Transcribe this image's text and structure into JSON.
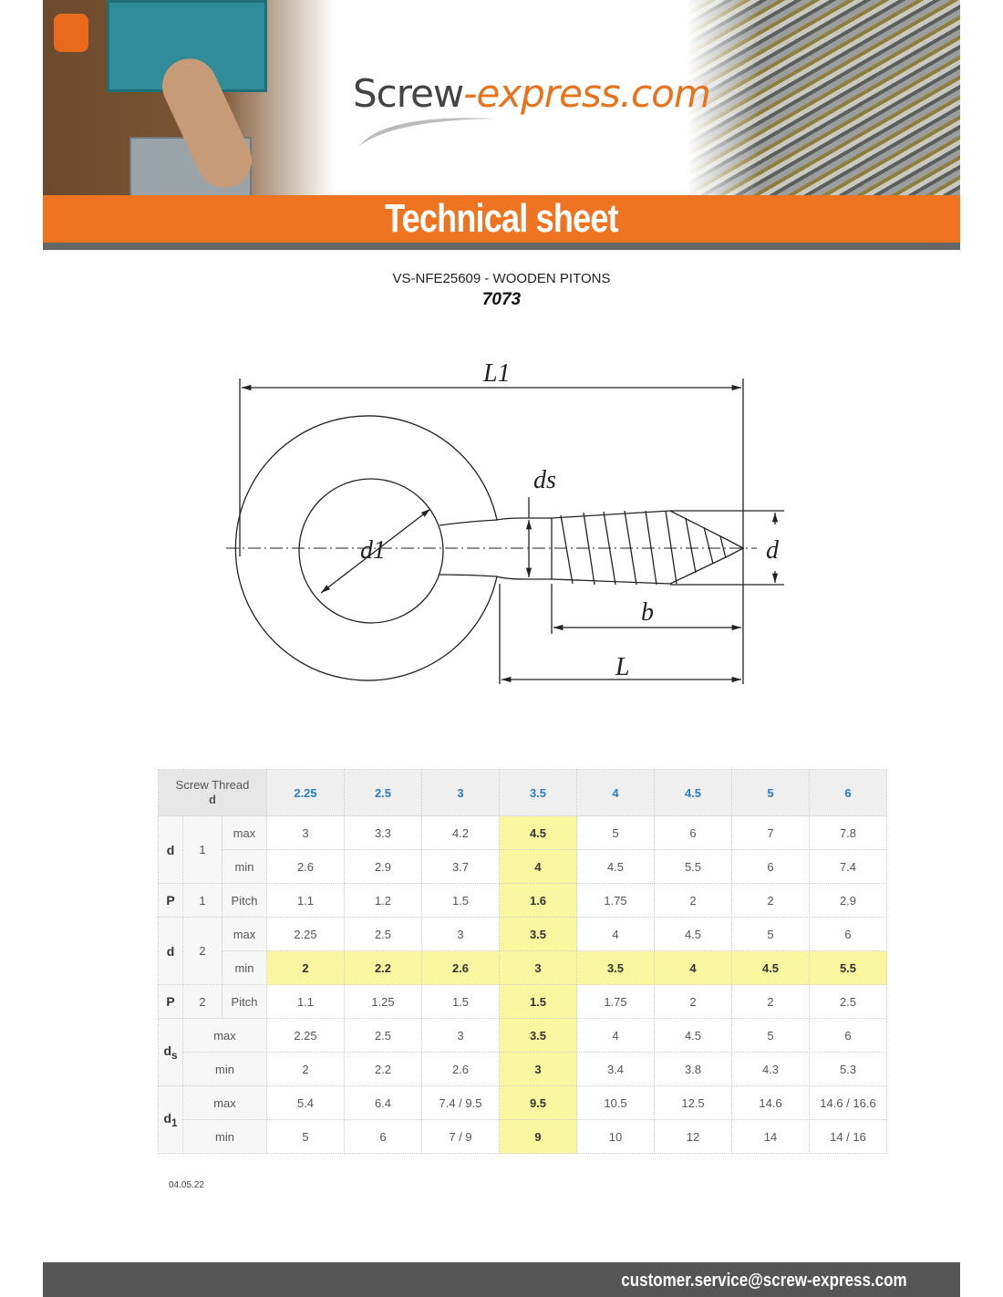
{
  "brand": {
    "name_part1": "Screw",
    "name_part2": "-express.com",
    "accent_color": "#ef7422"
  },
  "banner": {
    "heading": "Technical sheet"
  },
  "product": {
    "title": "VS-NFE25609 - WOODEN PITONS",
    "reference": "7073"
  },
  "diagram": {
    "labels": {
      "L1": "L1",
      "ds": "ds",
      "d1": "d1",
      "d": "d",
      "b": "b",
      "L": "L"
    }
  },
  "table": {
    "corner_label_line1": "Screw Thread",
    "corner_label_line2": "d",
    "columns": [
      "2.25",
      "2.5",
      "3",
      "3.5",
      "4",
      "4.5",
      "5",
      "6"
    ],
    "highlight_column": "3.5",
    "highlight_color": "#faf6a0",
    "rows": [
      {
        "sym": "d",
        "sub": "1",
        "kind": "max",
        "values": [
          "3",
          "3.3",
          "4.2",
          "4.5",
          "5",
          "6",
          "7",
          "7.8"
        ]
      },
      {
        "sym": "",
        "sub": "",
        "kind": "min",
        "values": [
          "2.6",
          "2.9",
          "3.7",
          "4",
          "4.5",
          "5.5",
          "6",
          "7.4"
        ]
      },
      {
        "sym": "P",
        "sub": "1",
        "kind": "Pitch",
        "values": [
          "1.1",
          "1.2",
          "1.5",
          "1.6",
          "1.75",
          "2",
          "2",
          "2.9"
        ]
      },
      {
        "sym": "d",
        "sub": "2",
        "kind": "max",
        "values": [
          "2.25",
          "2.5",
          "3",
          "3.5",
          "4",
          "4.5",
          "5",
          "6"
        ]
      },
      {
        "sym": "",
        "sub": "",
        "kind": "min",
        "highlight": true,
        "values": [
          "2",
          "2.2",
          "2.6",
          "3",
          "3.5",
          "4",
          "4.5",
          "5.5"
        ]
      },
      {
        "sym": "P",
        "sub": "2",
        "kind": "Pitch",
        "values": [
          "1.1",
          "1.25",
          "1.5",
          "1.5",
          "1.75",
          "2",
          "2",
          "2.5"
        ]
      },
      {
        "sym": "ds",
        "kind": "max",
        "values": [
          "2.25",
          "2.5",
          "3",
          "3.5",
          "4",
          "4.5",
          "5",
          "6"
        ]
      },
      {
        "sym": "",
        "kind": "min",
        "values": [
          "2",
          "2.2",
          "2.6",
          "3",
          "3.4",
          "3.8",
          "4.3",
          "5.3"
        ]
      },
      {
        "sym": "d1",
        "kind": "max",
        "values": [
          "5.4",
          "6.4",
          "7.4 / 9.5",
          "9.5",
          "10.5",
          "12.5",
          "14.6",
          "14.6 / 16.6"
        ]
      },
      {
        "sym": "",
        "kind": "min",
        "values": [
          "5",
          "6",
          "7 / 9",
          "9",
          "10",
          "12",
          "14",
          "14 / 16"
        ]
      }
    ]
  },
  "date": "04.05.22",
  "footer": {
    "email": "customer.service@screw-express.com"
  }
}
